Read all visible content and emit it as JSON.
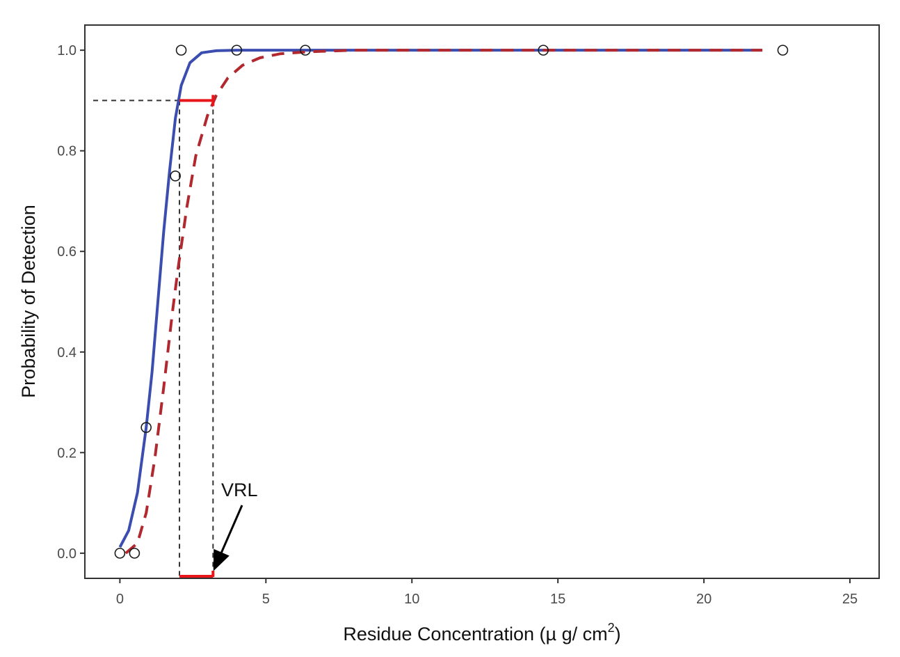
{
  "chart_data": {
    "type": "scatter",
    "xlabel": "Residue Concentration (µ g/ cm",
    "xlabel_sup": "2",
    "xlabel_close": ")",
    "ylabel": "Probability of Detection",
    "xlim": [
      -1.2,
      26.0
    ],
    "ylim": [
      -0.05,
      1.05
    ],
    "x_ticks": [
      0,
      5,
      10,
      15,
      20,
      25
    ],
    "x_tick_labels": [
      "0",
      "5",
      "10",
      "15",
      "20",
      "25"
    ],
    "y_ticks": [
      0.0,
      0.2,
      0.4,
      0.6,
      0.8,
      1.0
    ],
    "y_tick_labels": [
      "0.0",
      "0.2",
      "0.4",
      "0.6",
      "0.8",
      "1.0"
    ],
    "grid": false,
    "series": [
      {
        "kind": "points",
        "marker": "open-circle",
        "x": [
          0.0,
          0.5,
          0.9,
          1.9,
          2.1,
          4.0,
          6.35,
          14.5,
          22.7
        ],
        "y": [
          0.0,
          0.0,
          0.25,
          0.75,
          1.0,
          1.0,
          1.0,
          1.0,
          1.0
        ]
      },
      {
        "kind": "curve",
        "style": "solid",
        "color": "#3c4db0",
        "x": [
          0.0,
          0.3,
          0.6,
          0.9,
          1.1,
          1.3,
          1.5,
          1.7,
          1.9,
          2.1,
          2.4,
          2.8,
          3.3,
          4.0,
          6.0,
          10.0,
          22.0
        ],
        "y": [
          0.012,
          0.045,
          0.12,
          0.25,
          0.36,
          0.5,
          0.64,
          0.76,
          0.865,
          0.93,
          0.975,
          0.995,
          0.999,
          1.0,
          1.0,
          1.0,
          1.0
        ]
      },
      {
        "kind": "curve",
        "style": "dashed",
        "color": "#b1282e",
        "x": [
          0.2,
          0.6,
          0.9,
          1.2,
          1.5,
          1.8,
          2.0,
          2.3,
          2.6,
          3.0,
          3.3,
          3.7,
          4.2,
          4.8,
          5.5,
          6.5,
          8.0,
          10.0,
          22.0
        ],
        "y": [
          0.0,
          0.02,
          0.08,
          0.19,
          0.33,
          0.48,
          0.57,
          0.69,
          0.79,
          0.87,
          0.91,
          0.945,
          0.97,
          0.985,
          0.993,
          0.997,
          1.0,
          1.0,
          1.0
        ]
      }
    ],
    "reference_lines": {
      "y_level": 0.9,
      "x_left": 2.04,
      "x_right": 3.19
    },
    "interval_color": "#e8151b",
    "annotation": {
      "text": "VRL",
      "points_to_x": 3.19
    }
  }
}
